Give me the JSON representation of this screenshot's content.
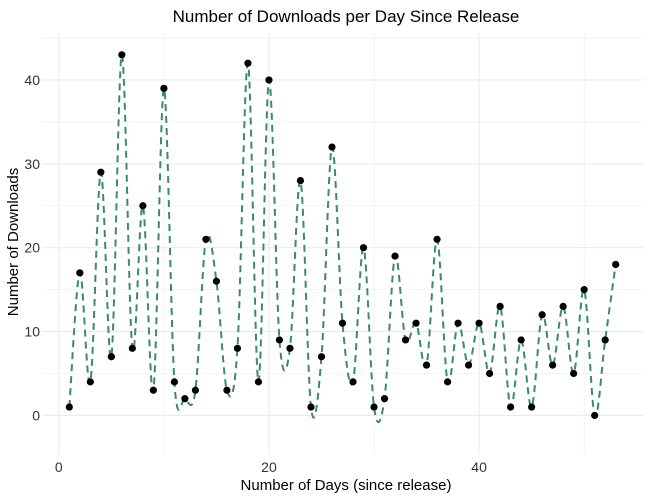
{
  "chart_data": {
    "type": "line",
    "title": "Number of Downloads per Day Since Release",
    "xlabel": "Number of Days (since release)",
    "ylabel": "Number of Downloads",
    "xlim": [
      -1.6,
      55.6
    ],
    "ylim": [
      -4.6,
      45.6
    ],
    "x_ticks": [
      0,
      20,
      40
    ],
    "y_ticks": [
      0,
      10,
      20,
      30,
      40
    ],
    "grid": true,
    "colors": {
      "line": "#3a8a6e",
      "point": "#000000",
      "grid": "#ebebeb",
      "background": "#ffffff"
    },
    "series": [
      {
        "style": "points",
        "x": [
          1,
          2,
          3,
          4,
          5,
          6,
          7,
          8,
          9,
          10,
          11,
          12,
          13,
          14,
          15,
          16,
          17,
          18,
          19,
          20,
          21,
          22,
          23,
          24,
          25,
          26,
          27,
          28,
          29,
          30,
          31,
          32,
          33,
          34,
          35,
          36,
          37,
          38,
          39,
          40,
          41,
          42,
          43,
          44,
          45,
          46,
          47,
          48,
          49,
          50,
          51,
          52,
          53
        ],
        "values": [
          1,
          17,
          4,
          29,
          7,
          43,
          8,
          25,
          3,
          39,
          4,
          2,
          3,
          21,
          16,
          3,
          8,
          42,
          4,
          40,
          9,
          8,
          28,
          1,
          7,
          32,
          11,
          4,
          20,
          1,
          2,
          19,
          9,
          11,
          6,
          21,
          4,
          11,
          6,
          11,
          5,
          13,
          1,
          9,
          1,
          12,
          6,
          13,
          5,
          15,
          0,
          9,
          18
        ]
      },
      {
        "style": "smoothed dashed line",
        "x": [
          1,
          2,
          3,
          4,
          5,
          6,
          7,
          8,
          9,
          10,
          11,
          12,
          13,
          14,
          15,
          16,
          17,
          18,
          19,
          20,
          21,
          22,
          23,
          24,
          25,
          26,
          27,
          28,
          29,
          30,
          31,
          32,
          33,
          34,
          35,
          36,
          37,
          38,
          39,
          40,
          41,
          42,
          43,
          44,
          45,
          46,
          47,
          48,
          49,
          50,
          51,
          52,
          53
        ],
        "values": [
          1,
          17,
          4,
          29,
          7,
          43,
          8,
          25,
          3,
          39,
          4,
          2,
          3,
          21,
          16,
          3,
          8,
          42,
          4,
          40,
          9,
          8,
          28,
          1,
          7,
          32,
          11,
          4,
          20,
          1,
          2,
          19,
          9,
          11,
          6,
          21,
          4,
          11,
          6,
          11,
          5,
          13,
          1,
          9,
          1,
          12,
          6,
          13,
          5,
          15,
          0,
          9,
          18
        ]
      }
    ]
  }
}
